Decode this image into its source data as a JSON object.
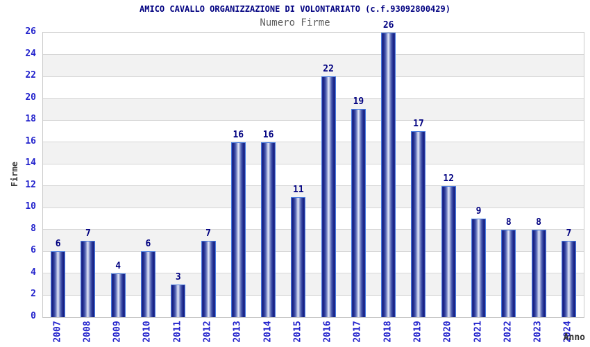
{
  "header": {
    "title": "AMICO CAVALLO ORGANIZZAZIONE DI VOLONTARIATO (c.f.93092800429)",
    "subtitle": "Numero Firme"
  },
  "colors": {
    "title": "#000080",
    "subtitle": "#606060",
    "axis_tick": "#2222cc",
    "value_label": "#000080",
    "bar_dark": "#161d7d",
    "bar_light": "#e6eaf8",
    "bar_border": "#4a7de0",
    "band_alt": "#f2f2f2",
    "gridline": "#d6d6d6",
    "plot_border": "#c9c9c9"
  },
  "chart_data": {
    "type": "bar",
    "title": "AMICO CAVALLO ORGANIZZAZIONE DI VOLONTARIATO (c.f.93092800429)",
    "subtitle": "Numero Firme",
    "xlabel": "Anno",
    "ylabel": "Firme",
    "categories": [
      "2007",
      "2008",
      "2009",
      "2010",
      "2011",
      "2012",
      "2013",
      "2014",
      "2015",
      "2016",
      "2017",
      "2018",
      "2019",
      "2020",
      "2021",
      "2022",
      "2023",
      "2024"
    ],
    "values": [
      6,
      7,
      4,
      6,
      3,
      7,
      16,
      16,
      11,
      22,
      19,
      26,
      17,
      12,
      9,
      8,
      8,
      7
    ],
    "ylim": [
      0,
      26
    ],
    "ytick_step": 2,
    "grid": true,
    "alternating_bands": true,
    "value_labels": true,
    "legend": "none"
  }
}
